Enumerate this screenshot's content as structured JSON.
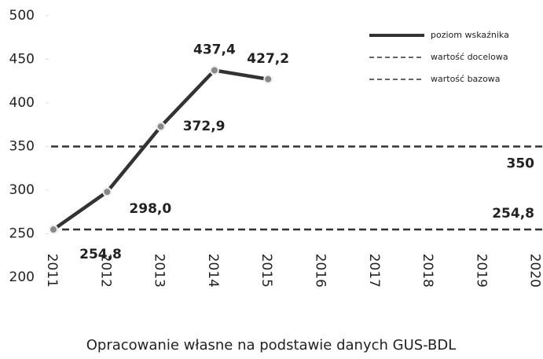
{
  "chart_data": {
    "type": "line",
    "source": "Opracowanie własne na podstawie danych GUS-BDL",
    "categories": [
      "2011",
      "2012",
      "2013",
      "2014",
      "2015",
      "2016",
      "2017",
      "2018",
      "2019",
      "2020"
    ],
    "series": [
      {
        "name": "poziom wskaźnika",
        "color": "#333333",
        "values": [
          254.8,
          298.0,
          372.9,
          437.4,
          427.2,
          null,
          null,
          null,
          null,
          null
        ],
        "value_labels": [
          "254,8",
          "298,0",
          "372,9",
          "437,4",
          "427,2",
          null,
          null,
          null,
          null,
          null
        ]
      }
    ],
    "reference_lines": [
      {
        "name": "wartość docelowa",
        "value": 350,
        "label": "350",
        "color": "#333333"
      },
      {
        "name": "wartość bazowa",
        "value": 254.8,
        "label": "254,8",
        "color": "#333333"
      }
    ],
    "ylim": [
      200,
      500
    ],
    "yticks": [
      200,
      250,
      300,
      350,
      400,
      450,
      500
    ],
    "legend": "top-right"
  }
}
